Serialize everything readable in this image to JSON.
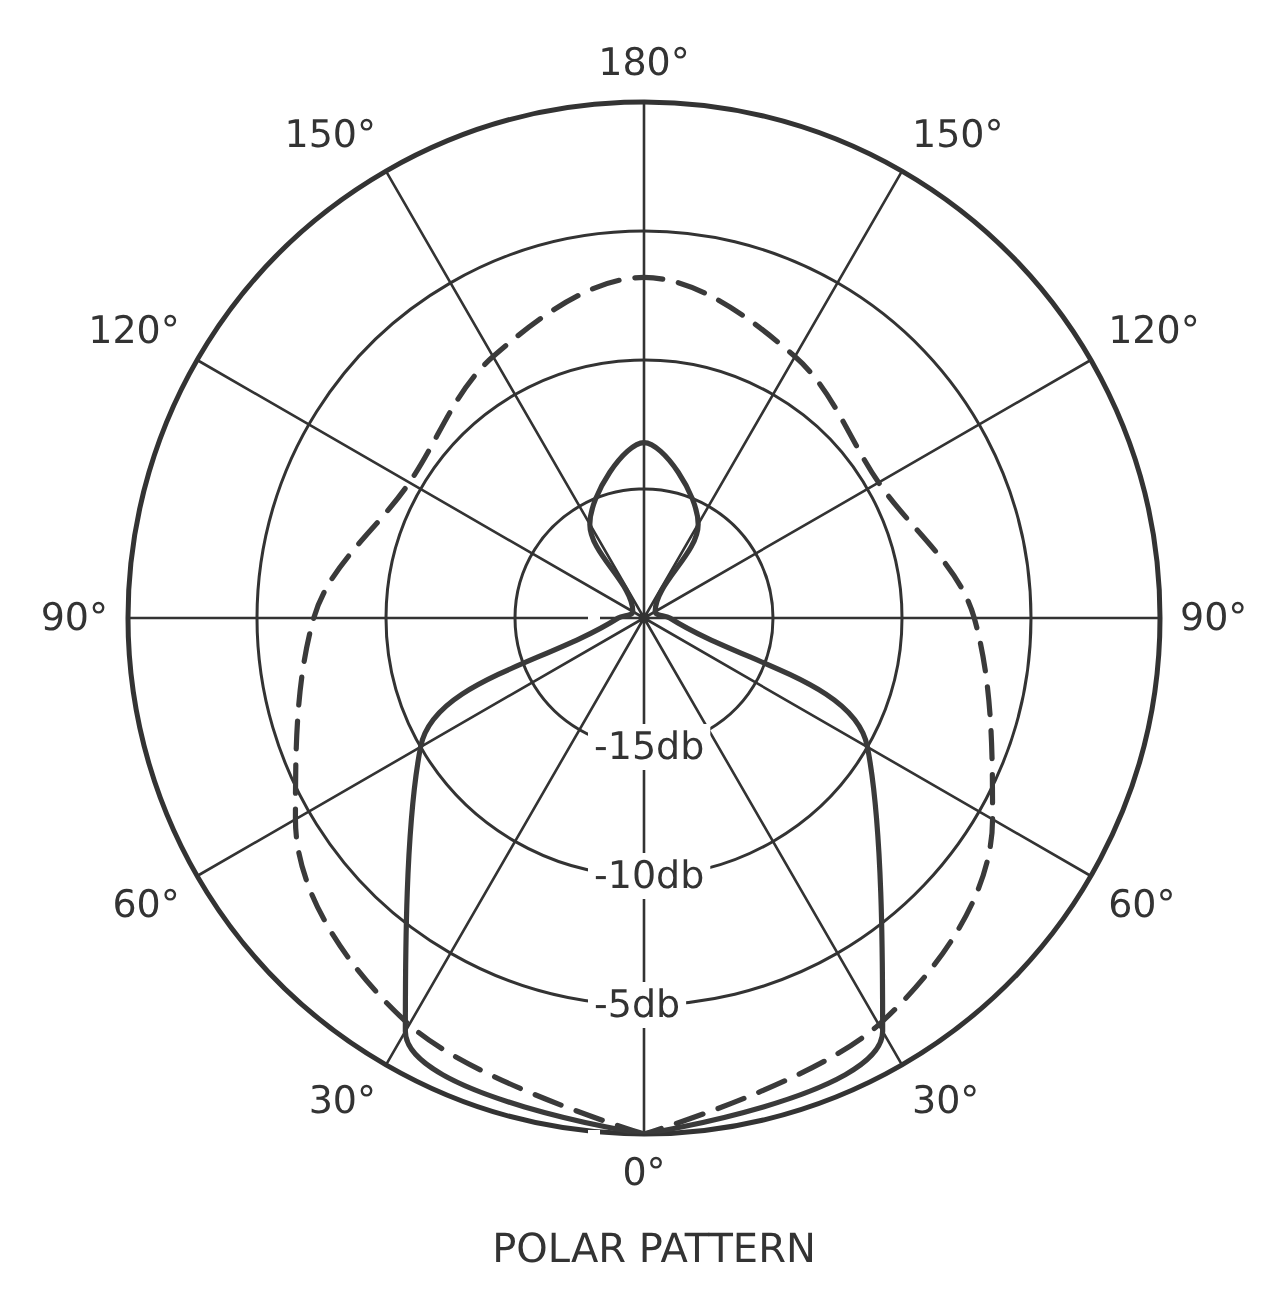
{
  "chart_data": {
    "type": "radar",
    "title": "POLAR PATTERN",
    "categories": [
      "180°",
      "150°",
      "120°",
      "90°",
      "60°",
      "30°",
      "0°",
      "30°",
      "60°",
      "90°",
      "120°",
      "150°"
    ],
    "series": [
      {
        "color": "#3a3a3a",
        "line_style": "solid",
        "values": [
          -13.2,
          -15.8,
          -19.5,
          -19,
          -10,
          -1.5,
          0,
          -1.5,
          -10,
          -19,
          -19.5,
          -15.8
        ]
      },
      {
        "color": "#3a3a3a",
        "line_style": "dashed",
        "values": [
          -6.8,
          -8.3,
          -9.5,
          -7.2,
          -4.4,
          -1.8,
          0,
          -1.8,
          -4.4,
          -7.2,
          -9.5,
          -8.3
        ]
      }
    ],
    "ylim": [
      -20,
      0
    ],
    "yticks": [
      {
        "value": -15,
        "label": "-15db"
      },
      {
        "value": -10,
        "label": "-10db"
      },
      {
        "value": -5,
        "label": "-5db"
      }
    ],
    "grid": true,
    "marker": "none"
  }
}
